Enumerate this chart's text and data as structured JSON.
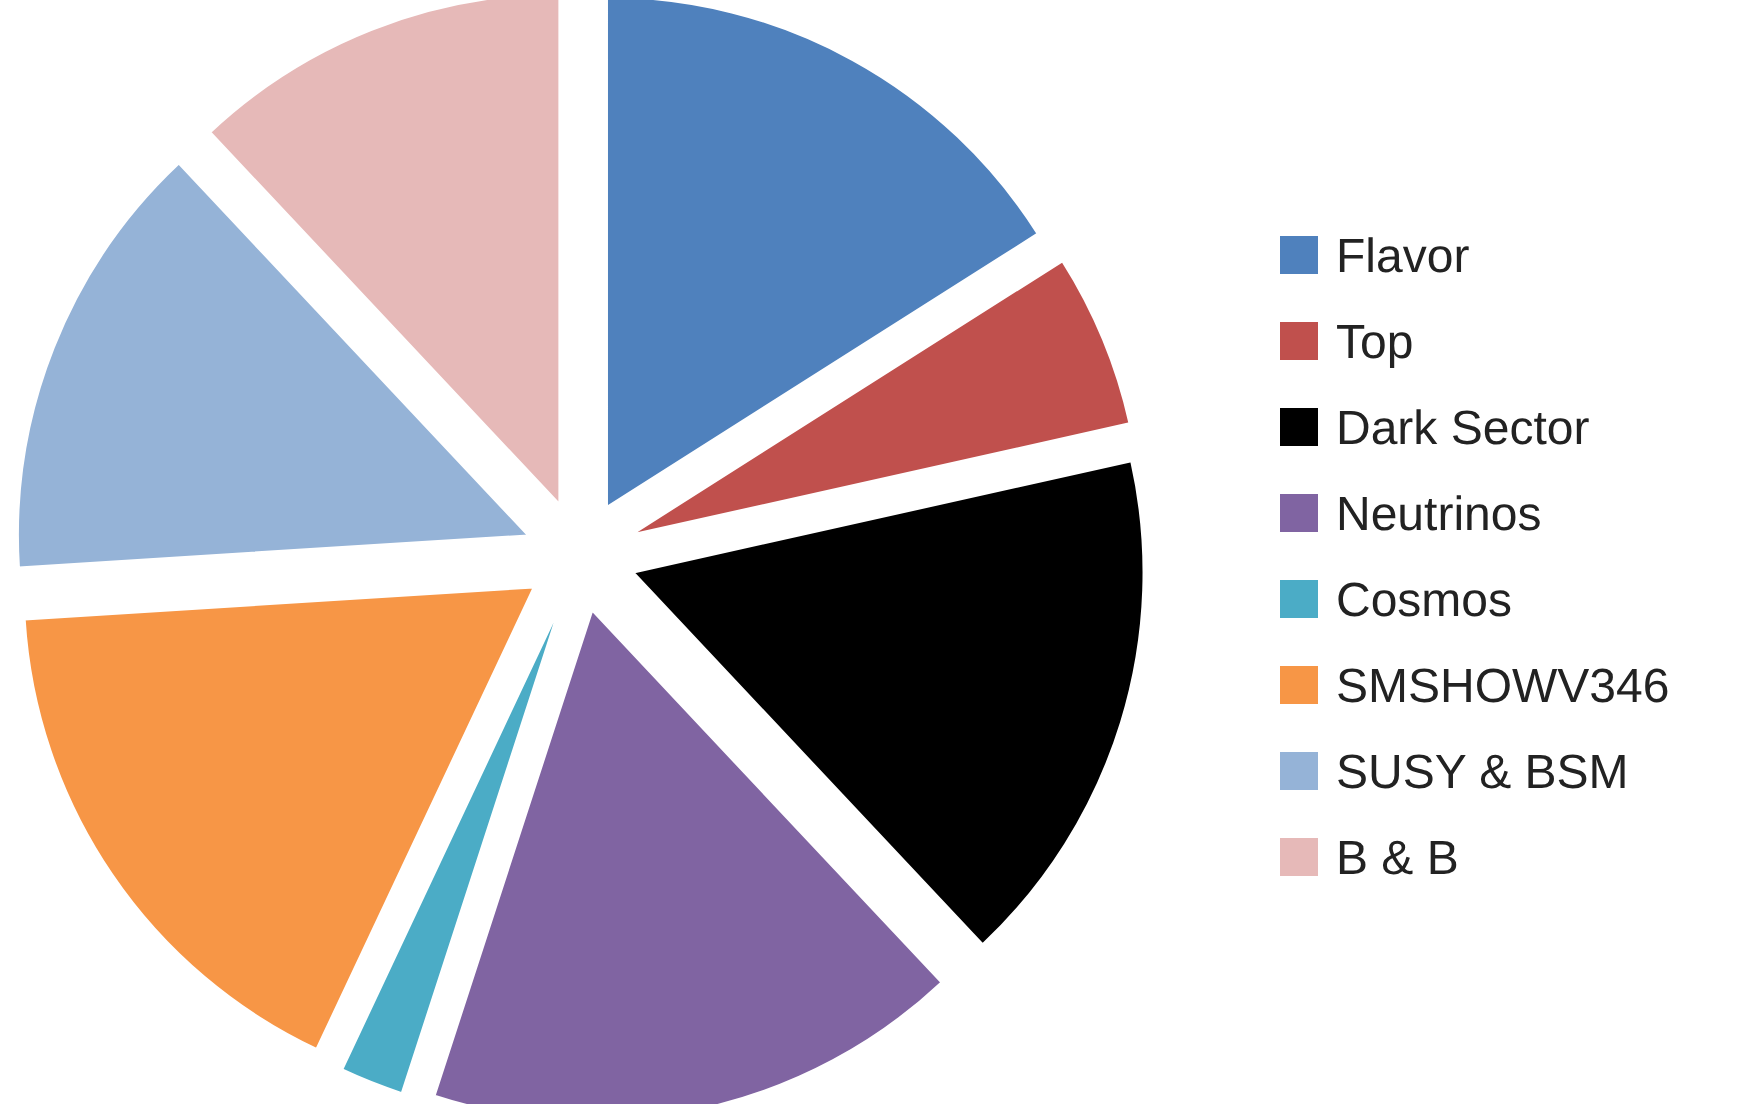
{
  "chart_data": {
    "type": "pie",
    "categories": [
      "Flavor",
      "Top",
      "Dark Sector",
      "Neutrinos",
      "Cosmos",
      "SMSHOWV346",
      "SUSY & BSM",
      "B & B"
    ],
    "values": [
      16,
      5.5,
      16.5,
      17,
      2,
      17,
      14,
      12
    ],
    "colors": [
      "#4f81bd",
      "#c0504d",
      "#000000",
      "#8064a2",
      "#4bacc6",
      "#f79646",
      "#95b3d7",
      "#e6b9b8"
    ],
    "legend": "right"
  }
}
